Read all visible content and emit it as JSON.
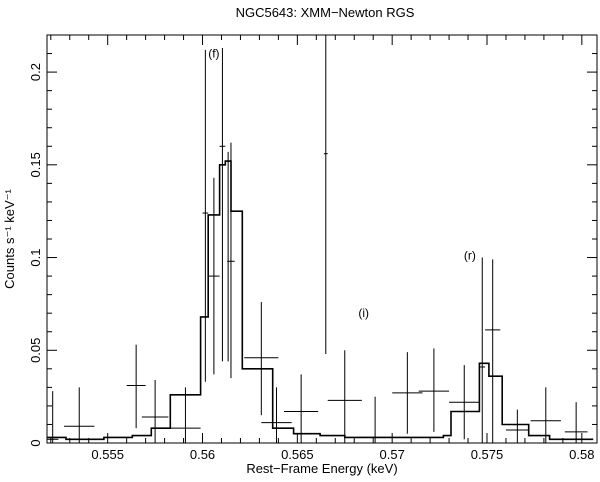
{
  "chart_data": {
    "type": "line",
    "title": "NGC5643: XMM−Newton RGS",
    "xlabel": "Rest−Frame Energy (keV)",
    "ylabel": "Counts s⁻¹ keV⁻¹",
    "xlim": [
      0.5518,
      0.5808
    ],
    "ylim": [
      0,
      0.22
    ],
    "x_ticks": [
      0.555,
      0.56,
      0.565,
      0.57,
      0.575,
      0.58
    ],
    "x_tick_labels": [
      "0.555",
      "0.56",
      "0.565",
      "0.57",
      "0.575",
      "0.58"
    ],
    "y_ticks": [
      0,
      0.05,
      0.1,
      0.15,
      0.2
    ],
    "y_tick_labels": [
      "0",
      "0.05",
      "0.1",
      "0.15",
      "0.2"
    ],
    "annotations": [
      {
        "text": "(f)",
        "x": 0.5606,
        "y": 0.208
      },
      {
        "text": "(i)",
        "x": 0.5685,
        "y": 0.068
      },
      {
        "text": "(r)",
        "x": 0.5741,
        "y": 0.099
      }
    ],
    "data_points": [
      {
        "x": 0.5521,
        "xerr": 0.0003,
        "y": 0.002,
        "ylo": 0.0,
        "yhi": 0.028
      },
      {
        "x": 0.5535,
        "xerr": 0.0008,
        "y": 0.009,
        "ylo": 0.0,
        "yhi": 0.03
      },
      {
        "x": 0.5565,
        "xerr": 0.0005,
        "y": 0.031,
        "ylo": 0.008,
        "yhi": 0.053
      },
      {
        "x": 0.5575,
        "xerr": 0.0007,
        "y": 0.014,
        "ylo": 0.0,
        "yhi": 0.034
      },
      {
        "x": 0.5591,
        "xerr": 0.0008,
        "y": 0.008,
        "ylo": 0.0,
        "yhi": 0.03
      },
      {
        "x": 0.56015,
        "xerr": 0.00015,
        "y": 0.124,
        "ylo": 0.033,
        "yhi": 0.212
      },
      {
        "x": 0.5606,
        "xerr": 0.0003,
        "y": 0.09,
        "ylo": 0.037,
        "yhi": 0.143
      },
      {
        "x": 0.56105,
        "xerr": 0.00015,
        "y": 0.16,
        "ylo": 0.044,
        "yhi": 0.213
      },
      {
        "x": 0.56135,
        "xerr": 0.00015,
        "y": 0.152,
        "ylo": 0.044,
        "yhi": 0.157
      },
      {
        "x": 0.5615,
        "xerr": 0.0002,
        "y": 0.098,
        "ylo": 0.035,
        "yhi": 0.162
      },
      {
        "x": 0.5631,
        "xerr": 0.0009,
        "y": 0.046,
        "ylo": 0.015,
        "yhi": 0.076
      },
      {
        "x": 0.5639,
        "xerr": 0.0008,
        "y": 0.011,
        "ylo": 0.0,
        "yhi": 0.03
      },
      {
        "x": 0.5652,
        "xerr": 0.0009,
        "y": 0.017,
        "ylo": 0.0,
        "yhi": 0.037
      },
      {
        "x": 0.5665,
        "xerr": 0.0001,
        "y": 0.156,
        "ylo": 0.048,
        "yhi": 0.22
      },
      {
        "x": 0.5675,
        "xerr": 0.0009,
        "y": 0.023,
        "ylo": 0.0,
        "yhi": 0.05
      },
      {
        "x": 0.5691,
        "xerr": 0.0008,
        "y": 0.003,
        "ylo": 0.0,
        "yhi": 0.025
      },
      {
        "x": 0.5708,
        "xerr": 0.0008,
        "y": 0.027,
        "ylo": 0.005,
        "yhi": 0.049
      },
      {
        "x": 0.5722,
        "xerr": 0.0008,
        "y": 0.028,
        "ylo": 0.006,
        "yhi": 0.051
      },
      {
        "x": 0.5738,
        "xerr": 0.0008,
        "y": 0.022,
        "ylo": 0.002,
        "yhi": 0.042
      },
      {
        "x": 0.57475,
        "xerr": 0.00015,
        "y": 0.041,
        "ylo": 0.0,
        "yhi": 0.1
      },
      {
        "x": 0.5753,
        "xerr": 0.0004,
        "y": 0.061,
        "ylo": 0.0,
        "yhi": 0.099
      },
      {
        "x": 0.5766,
        "xerr": 0.0006,
        "y": 0.007,
        "ylo": 0.0,
        "yhi": 0.018
      },
      {
        "x": 0.5781,
        "xerr": 0.0008,
        "y": 0.012,
        "ylo": 0.0,
        "yhi": 0.03
      },
      {
        "x": 0.5797,
        "xerr": 0.0006,
        "y": 0.006,
        "ylo": 0.0,
        "yhi": 0.022
      }
    ],
    "model_steps": [
      [
        0.5518,
        0.003
      ],
      [
        0.5528,
        0.002
      ],
      [
        0.5548,
        0.003
      ],
      [
        0.5563,
        0.004
      ],
      [
        0.5573,
        0.008
      ],
      [
        0.5583,
        0.026
      ],
      [
        0.5599,
        0.068
      ],
      [
        0.5603,
        0.123
      ],
      [
        0.5609,
        0.15
      ],
      [
        0.5612,
        0.152
      ],
      [
        0.5615,
        0.125
      ],
      [
        0.5621,
        0.04
      ],
      [
        0.5632,
        0.04
      ],
      [
        0.5637,
        0.008
      ],
      [
        0.5648,
        0.005
      ],
      [
        0.5662,
        0.004
      ],
      [
        0.5675,
        0.003
      ],
      [
        0.5692,
        0.003
      ],
      [
        0.5718,
        0.003
      ],
      [
        0.5727,
        0.004
      ],
      [
        0.5731,
        0.017
      ],
      [
        0.5746,
        0.043
      ],
      [
        0.5751,
        0.036
      ],
      [
        0.5758,
        0.01
      ],
      [
        0.5772,
        0.004
      ],
      [
        0.5783,
        0.002
      ],
      [
        0.5806,
        0.002
      ]
    ],
    "model_end": 0.5806,
    "grid": false,
    "legend": "none"
  }
}
